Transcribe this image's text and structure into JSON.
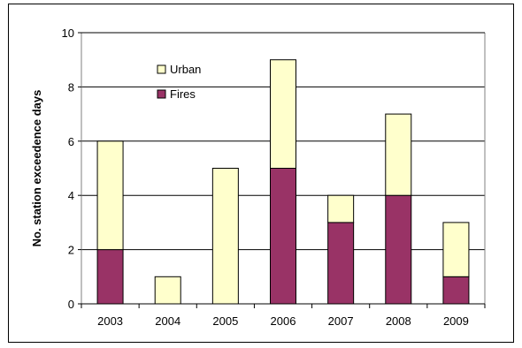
{
  "chart_data": {
    "type": "bar",
    "stacked": true,
    "categories": [
      "2003",
      "2004",
      "2005",
      "2006",
      "2007",
      "2008",
      "2009"
    ],
    "series": [
      {
        "name": "Fires",
        "values": [
          2,
          0,
          0,
          5,
          3,
          4,
          1
        ],
        "color": "#993366"
      },
      {
        "name": "Urban",
        "values": [
          4,
          1,
          5,
          4,
          1,
          3,
          2
        ],
        "color": "#FFFFCC"
      }
    ],
    "title": "",
    "xlabel": "",
    "ylabel": "No. station exceedence days",
    "ylim": [
      0,
      10
    ],
    "yticks": [
      0,
      2,
      4,
      6,
      8,
      10
    ],
    "grid": "horizontal",
    "legend_placement": "top-left, inside plot",
    "legend_order": [
      "Urban",
      "Fires"
    ]
  }
}
